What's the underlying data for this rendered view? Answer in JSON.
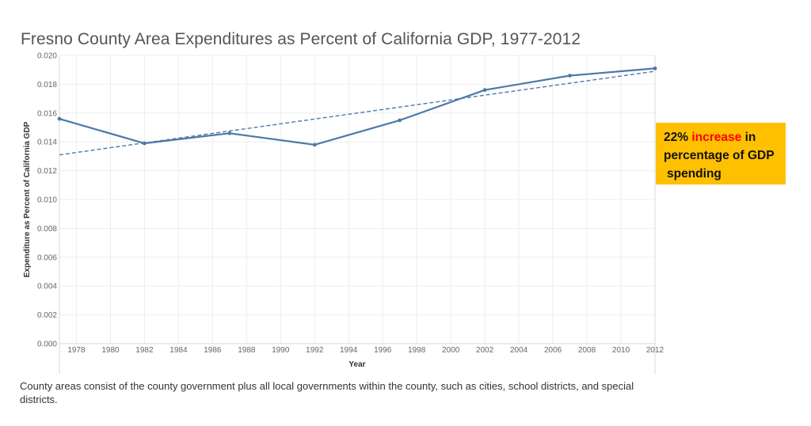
{
  "title": "Fresno County Area Expenditures as Percent of California GDP, 1977-2012",
  "callout": {
    "pct": "22%",
    "highlight": "increase",
    "rest1": " in",
    "line2": "percentage of GDP",
    "line3": "spending"
  },
  "footnote": "County areas consist of the county government plus all local governments within the county, such as cities, school districts, and special districts.",
  "colors": {
    "line": "#4e79a7",
    "trend": "#4e79a7",
    "grid": "#eeeeee",
    "callout_bg": "#ffc000",
    "highlight": "#ff0000"
  },
  "chart_data": {
    "type": "line",
    "title": "Fresno County Area Expenditures as Percent of California GDP, 1977-2012",
    "xlabel": "Year",
    "ylabel": "Expenditure as Percent of California GDP",
    "xlim": [
      1977,
      2012
    ],
    "ylim": [
      0,
      0.02
    ],
    "x_ticks": [
      1978,
      1980,
      1982,
      1984,
      1986,
      1988,
      1990,
      1992,
      1994,
      1996,
      1998,
      2000,
      2002,
      2004,
      2006,
      2008,
      2010,
      2012
    ],
    "y_ticks": [
      0,
      0.002,
      0.004,
      0.006,
      0.008,
      0.01,
      0.012,
      0.014,
      0.016,
      0.018,
      0.02
    ],
    "y_tick_labels": [
      "0.000",
      "0.002",
      "0.004",
      "0.006",
      "0.008",
      "0.010",
      "0.012",
      "0.014",
      "0.016",
      "0.018",
      "0.020"
    ],
    "grid": true,
    "series": [
      {
        "x": [
          1977,
          1982,
          1987,
          1992,
          1997,
          2002,
          2007,
          2012
        ],
        "y": [
          0.0156,
          0.0139,
          0.0146,
          0.0138,
          0.0155,
          0.0176,
          0.0186,
          0.0191
        ]
      }
    ],
    "trend_line": {
      "x": [
        1977,
        2012
      ],
      "y": [
        0.0131,
        0.0189
      ],
      "style": "dashed"
    }
  }
}
